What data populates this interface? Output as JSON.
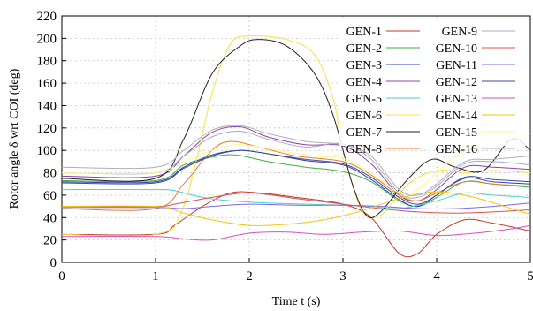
{
  "chart_data": {
    "type": "line",
    "title": "",
    "xlabel": "Time t (s)",
    "ylabel": "Rotor angle δ wrt COI (deg)",
    "xlim": [
      0,
      5
    ],
    "ylim": [
      0,
      220
    ],
    "xticks": [
      0,
      1,
      2,
      3,
      4,
      5
    ],
    "yticks": [
      0,
      20,
      40,
      60,
      80,
      100,
      120,
      140,
      160,
      180,
      200,
      220
    ],
    "grid": true,
    "legend_position": "top-right",
    "series": [
      {
        "name": "GEN-1",
        "color": "#c0392b",
        "points": [
          [
            0,
            25
          ],
          [
            1.0,
            25
          ],
          [
            1.2,
            33
          ],
          [
            1.5,
            50
          ],
          [
            1.8,
            62
          ],
          [
            2.1,
            62
          ],
          [
            2.5,
            58
          ],
          [
            3.0,
            52
          ],
          [
            3.3,
            40
          ],
          [
            3.6,
            8
          ],
          [
            3.8,
            8
          ],
          [
            4.0,
            25
          ],
          [
            4.3,
            38
          ],
          [
            4.6,
            35
          ],
          [
            5,
            28
          ]
        ]
      },
      {
        "name": "GEN-2",
        "color": "#3cb043",
        "points": [
          [
            0,
            73
          ],
          [
            1.0,
            73
          ],
          [
            1.3,
            87
          ],
          [
            1.6,
            94
          ],
          [
            1.85,
            96
          ],
          [
            2.2,
            90
          ],
          [
            2.6,
            85
          ],
          [
            3.0,
            81
          ],
          [
            3.3,
            72
          ],
          [
            3.6,
            55
          ],
          [
            3.8,
            50
          ],
          [
            4.0,
            58
          ],
          [
            4.3,
            72
          ],
          [
            4.6,
            70
          ],
          [
            5,
            67
          ]
        ]
      },
      {
        "name": "GEN-3",
        "color": "#2f3fb5",
        "points": [
          [
            0,
            72
          ],
          [
            1.0,
            72
          ],
          [
            1.3,
            85
          ],
          [
            1.6,
            96
          ],
          [
            1.9,
            100
          ],
          [
            2.2,
            97
          ],
          [
            2.6,
            91
          ],
          [
            3.0,
            87
          ],
          [
            3.3,
            74
          ],
          [
            3.6,
            56
          ],
          [
            3.8,
            50
          ],
          [
            4.0,
            60
          ],
          [
            4.3,
            75
          ],
          [
            4.6,
            72
          ],
          [
            5,
            70
          ]
        ]
      },
      {
        "name": "GEN-4",
        "color": "#8e44ad",
        "points": [
          [
            0,
            77
          ],
          [
            1.0,
            77
          ],
          [
            1.3,
            95
          ],
          [
            1.6,
            116
          ],
          [
            1.9,
            121
          ],
          [
            2.2,
            112
          ],
          [
            2.6,
            105
          ],
          [
            3.0,
            104
          ],
          [
            3.3,
            88
          ],
          [
            3.6,
            60
          ],
          [
            3.8,
            55
          ],
          [
            4.0,
            65
          ],
          [
            4.3,
            85
          ],
          [
            4.6,
            85
          ],
          [
            5,
            83
          ]
        ]
      },
      {
        "name": "GEN-5",
        "color": "#48d1cc",
        "points": [
          [
            0,
            65
          ],
          [
            1.0,
            65
          ],
          [
            1.2,
            64
          ],
          [
            1.5,
            58
          ],
          [
            1.8,
            55
          ],
          [
            2.2,
            53
          ],
          [
            2.6,
            52
          ],
          [
            3.0,
            51
          ],
          [
            3.3,
            50
          ],
          [
            3.6,
            48
          ],
          [
            4.0,
            55
          ],
          [
            4.3,
            62
          ],
          [
            4.6,
            60
          ],
          [
            5,
            58
          ]
        ]
      },
      {
        "name": "GEN-6",
        "color": "#f0e442",
        "points": [
          [
            0,
            25
          ],
          [
            1.0,
            25
          ],
          [
            1.3,
            50
          ],
          [
            1.6,
            150
          ],
          [
            1.8,
            195
          ],
          [
            2.0,
            202
          ],
          [
            2.4,
            199
          ],
          [
            2.7,
            185
          ],
          [
            2.9,
            145
          ],
          [
            3.0,
            100
          ],
          [
            3.2,
            47
          ],
          [
            3.4,
            42
          ],
          [
            3.7,
            70
          ],
          [
            4.0,
            82
          ],
          [
            4.3,
            80
          ],
          [
            4.6,
            82
          ],
          [
            5,
            80
          ]
        ]
      },
      {
        "name": "GEN-7",
        "color": "#222222",
        "points": [
          [
            0,
            75
          ],
          [
            1.0,
            75
          ],
          [
            1.3,
            110
          ],
          [
            1.6,
            168
          ],
          [
            1.9,
            193
          ],
          [
            2.1,
            199
          ],
          [
            2.4,
            193
          ],
          [
            2.7,
            168
          ],
          [
            2.9,
            130
          ],
          [
            3.1,
            70
          ],
          [
            3.25,
            42
          ],
          [
            3.4,
            45
          ],
          [
            3.7,
            75
          ],
          [
            3.95,
            92
          ],
          [
            4.2,
            85
          ],
          [
            4.5,
            82
          ],
          [
            4.8,
            110
          ],
          [
            5,
            100
          ]
        ]
      },
      {
        "name": "GEN-8",
        "color": "#e67e22",
        "points": [
          [
            0,
            48
          ],
          [
            1.0,
            48
          ],
          [
            1.3,
            70
          ],
          [
            1.6,
            100
          ],
          [
            1.8,
            108
          ],
          [
            2.1,
            103
          ],
          [
            2.5,
            95
          ],
          [
            3.0,
            90
          ],
          [
            3.3,
            78
          ],
          [
            3.6,
            60
          ],
          [
            3.8,
            55
          ],
          [
            4.0,
            62
          ],
          [
            4.3,
            72
          ],
          [
            4.6,
            70
          ],
          [
            5,
            68
          ]
        ]
      },
      {
        "name": "GEN-9",
        "color": "#a9a9c8",
        "points": [
          [
            0,
            80
          ],
          [
            1.0,
            80
          ],
          [
            1.3,
            95
          ],
          [
            1.6,
            112
          ],
          [
            1.9,
            117
          ],
          [
            2.2,
            110
          ],
          [
            2.6,
            103
          ],
          [
            3.0,
            106
          ],
          [
            3.3,
            92
          ],
          [
            3.6,
            62
          ],
          [
            3.8,
            58
          ],
          [
            4.0,
            68
          ],
          [
            4.3,
            88
          ],
          [
            4.6,
            90
          ],
          [
            5,
            87
          ]
        ]
      },
      {
        "name": "GEN-10",
        "color": "#d9534f",
        "points": [
          [
            0,
            50
          ],
          [
            1.0,
            50
          ],
          [
            1.2,
            52
          ],
          [
            1.6,
            58
          ],
          [
            2.0,
            62
          ],
          [
            2.5,
            57
          ],
          [
            3.0,
            52
          ],
          [
            3.4,
            48
          ],
          [
            3.8,
            45
          ],
          [
            4.2,
            44
          ],
          [
            4.6,
            45
          ],
          [
            5,
            47
          ]
        ]
      },
      {
        "name": "GEN-11",
        "color": "#7b68ee",
        "points": [
          [
            0,
            49
          ],
          [
            1.0,
            49
          ],
          [
            1.3,
            48
          ],
          [
            1.6,
            50
          ],
          [
            2.0,
            52
          ],
          [
            2.5,
            51
          ],
          [
            3.0,
            51
          ],
          [
            3.4,
            50
          ],
          [
            3.8,
            48
          ],
          [
            4.2,
            48
          ],
          [
            4.6,
            50
          ],
          [
            5,
            53
          ]
        ]
      },
      {
        "name": "GEN-12",
        "color": "#3d4a9c",
        "points": [
          [
            0,
            71
          ],
          [
            1.0,
            71
          ],
          [
            1.3,
            84
          ],
          [
            1.6,
            95
          ],
          [
            1.9,
            100
          ],
          [
            2.2,
            97
          ],
          [
            2.6,
            92
          ],
          [
            3.0,
            88
          ],
          [
            3.3,
            76
          ],
          [
            3.6,
            58
          ],
          [
            3.8,
            52
          ],
          [
            4.0,
            60
          ],
          [
            4.3,
            76
          ],
          [
            4.6,
            74
          ],
          [
            5,
            72
          ]
        ]
      },
      {
        "name": "GEN-13",
        "color": "#d64fc4",
        "points": [
          [
            0,
            23
          ],
          [
            1.0,
            23
          ],
          [
            1.3,
            21
          ],
          [
            1.6,
            20
          ],
          [
            2.0,
            26
          ],
          [
            2.4,
            27
          ],
          [
            2.8,
            25
          ],
          [
            3.2,
            27
          ],
          [
            3.6,
            28
          ],
          [
            4.0,
            24
          ],
          [
            4.4,
            26
          ],
          [
            4.8,
            30
          ],
          [
            5,
            33
          ]
        ]
      },
      {
        "name": "GEN-14",
        "color": "#f1c40f",
        "points": [
          [
            0,
            50
          ],
          [
            1.0,
            50
          ],
          [
            1.3,
            44
          ],
          [
            1.6,
            38
          ],
          [
            2.0,
            33
          ],
          [
            2.4,
            34
          ],
          [
            2.8,
            38
          ],
          [
            3.2,
            46
          ],
          [
            3.6,
            57
          ],
          [
            4.0,
            63
          ],
          [
            4.4,
            58
          ],
          [
            4.8,
            48
          ],
          [
            5,
            43
          ]
        ]
      },
      {
        "name": "GEN-15",
        "color": "#fff68f",
        "points": [
          [
            0,
            80
          ],
          [
            1.0,
            80
          ],
          [
            1.3,
            90
          ],
          [
            1.6,
            100
          ],
          [
            1.9,
            105
          ],
          [
            2.3,
            100
          ],
          [
            2.7,
            95
          ],
          [
            3.0,
            93
          ],
          [
            3.3,
            80
          ],
          [
            3.6,
            62
          ],
          [
            3.8,
            65
          ],
          [
            4.0,
            80
          ],
          [
            4.3,
            100
          ],
          [
            4.6,
            108
          ],
          [
            5,
            115
          ]
        ]
      },
      {
        "name": "GEN-16",
        "color": "#b0b0b0",
        "points": [
          [
            0,
            85
          ],
          [
            1.0,
            85
          ],
          [
            1.3,
            100
          ],
          [
            1.6,
            118
          ],
          [
            1.9,
            122
          ],
          [
            2.2,
            115
          ],
          [
            2.6,
            108
          ],
          [
            3.0,
            105
          ],
          [
            3.3,
            95
          ],
          [
            3.6,
            65
          ],
          [
            3.8,
            60
          ],
          [
            4.0,
            70
          ],
          [
            4.3,
            90
          ],
          [
            4.6,
            92
          ],
          [
            5,
            95
          ]
        ]
      }
    ]
  }
}
